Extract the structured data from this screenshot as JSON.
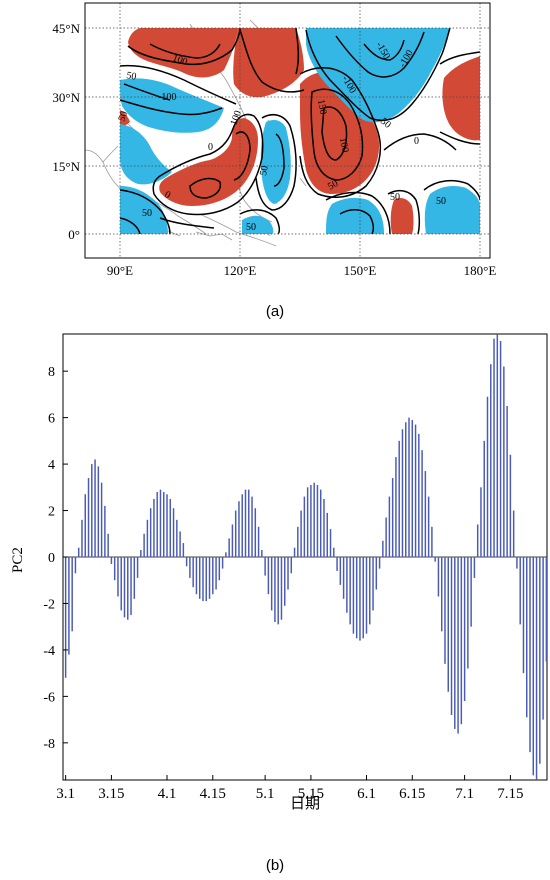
{
  "colors": {
    "positive": "#d24a35",
    "negative": "#35b7e6",
    "bar": "#4a5bb5",
    "contour": "#000000",
    "coast": "#8c8c8c"
  },
  "panel_a": {
    "caption": "(a)",
    "lat_labels": [
      "45°N",
      "30°N",
      "15°N",
      "0°"
    ],
    "lon_labels": [
      "90°E",
      "120°E",
      "150°E",
      "180°E"
    ]
  },
  "panel_b": {
    "caption": "(b)"
  },
  "chart_data": [
    {
      "type": "heatmap",
      "title": "",
      "lat_ticks": [
        45,
        30,
        15,
        0
      ],
      "lon_ticks": [
        90,
        120,
        150,
        180
      ],
      "lon_range": [
        80,
        186
      ],
      "lat_range": [
        -6,
        52
      ],
      "data_lon_range": [
        90,
        180
      ],
      "data_lat_range": [
        0,
        45
      ],
      "contour_values": [
        -150,
        -100,
        -50,
        0,
        50,
        100,
        150
      ],
      "contour_labels": [
        "100",
        "50",
        "-100",
        "50",
        "100",
        "150",
        "-100",
        "50",
        "0",
        "-150",
        "-100",
        "50",
        "50",
        "0",
        "0",
        "50",
        "50",
        "50",
        "50",
        "100"
      ],
      "grid": true,
      "regions": [
        {
          "sign": "positive",
          "label": "100"
        },
        {
          "sign": "negative",
          "label": "-100"
        },
        {
          "sign": "positive",
          "label": "150"
        },
        {
          "sign": "negative",
          "label": "-150"
        }
      ]
    },
    {
      "type": "bar",
      "title": "",
      "xlabel": "日期",
      "ylabel": "PC2",
      "ylim": [
        -9.6,
        9.6
      ],
      "yticks": [
        8,
        6,
        4,
        2,
        0,
        -2,
        -4,
        -6,
        -8
      ],
      "xticks": [
        {
          "label": "3.1",
          "index": 0
        },
        {
          "label": "3.15",
          "index": 14
        },
        {
          "label": "4.1",
          "index": 31
        },
        {
          "label": "4.15",
          "index": 45
        },
        {
          "label": "5.1",
          "index": 61
        },
        {
          "label": "5.15",
          "index": 75
        },
        {
          "label": "6.1",
          "index": 92
        },
        {
          "label": "6.15",
          "index": 106
        },
        {
          "label": "7.1",
          "index": 122
        },
        {
          "label": "7.15",
          "index": 136
        }
      ],
      "grid": false,
      "values": [
        -5.2,
        -4.2,
        -3.2,
        -0.7,
        0.4,
        1.6,
        2.7,
        3.4,
        4.0,
        4.2,
        3.9,
        3.2,
        2.2,
        1.0,
        -0.3,
        -1.0,
        -1.7,
        -2.3,
        -2.6,
        -2.7,
        -2.5,
        -1.8,
        -0.9,
        0.3,
        1.0,
        1.6,
        2.1,
        2.5,
        2.8,
        2.9,
        2.8,
        2.7,
        2.5,
        2.1,
        1.6,
        1.1,
        0.6,
        -0.4,
        -0.9,
        -1.3,
        -1.6,
        -1.8,
        -1.9,
        -1.9,
        -1.8,
        -1.6,
        -1.4,
        -1.0,
        -0.5,
        0.2,
        0.8,
        1.4,
        2.0,
        2.4,
        2.7,
        2.9,
        2.9,
        2.6,
        2.1,
        1.3,
        0.3,
        -0.8,
        -1.6,
        -2.3,
        -2.8,
        -2.9,
        -2.7,
        -2.1,
        -1.4,
        -0.7,
        0.4,
        1.3,
        2.0,
        2.6,
        3.0,
        3.1,
        3.2,
        3.1,
        2.9,
        2.5,
        1.9,
        1.2,
        0.4,
        -0.6,
        -1.2,
        -1.8,
        -2.4,
        -2.9,
        -3.3,
        -3.5,
        -3.6,
        -3.5,
        -3.3,
        -2.9,
        -2.3,
        -1.4,
        -0.5,
        0.7,
        1.7,
        2.6,
        3.4,
        4.3,
        5.0,
        5.5,
        5.8,
        6.0,
        5.9,
        5.7,
        5.3,
        4.6,
        3.7,
        2.6,
        1.3,
        -0.2,
        -1.7,
        -3.2,
        -4.6,
        -5.8,
        -6.8,
        -7.4,
        -7.6,
        -7.2,
        -6.2,
        -4.8,
        -3.0,
        -0.9,
        1.4,
        3.0,
        5.0,
        6.9,
        8.3,
        9.4,
        9.6,
        9.3,
        8.2,
        6.5,
        4.4,
        2.0,
        -0.5,
        -2.9,
        -5.0,
        -6.9,
        -8.4,
        -9.4,
        -9.6,
        -8.9,
        -7.0,
        -4.5
      ]
    }
  ]
}
